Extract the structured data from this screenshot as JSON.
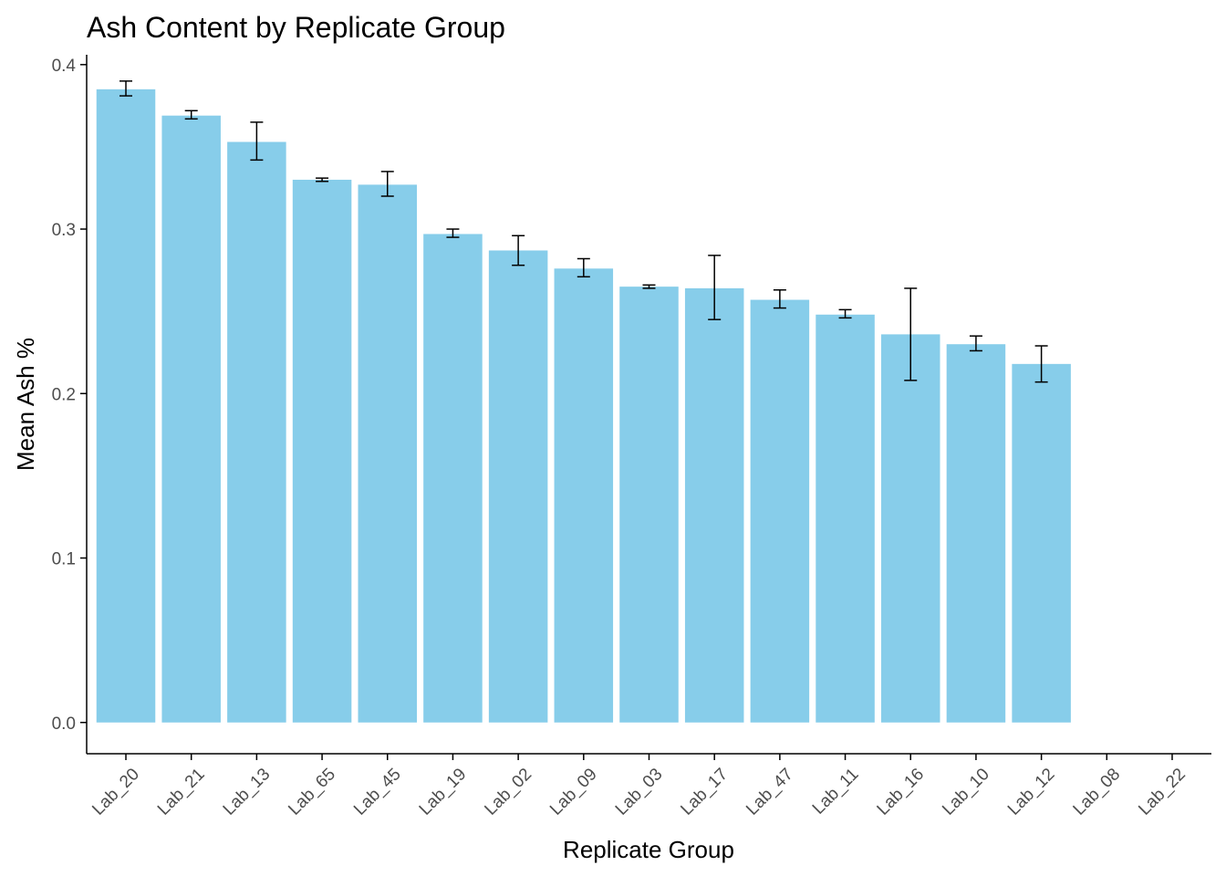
{
  "chart_data": {
    "type": "bar",
    "title": "Ash Content by Replicate Group",
    "xlabel": "Replicate Group",
    "ylabel": "Mean Ash %",
    "categories": [
      "Lab_20",
      "Lab_21",
      "Lab_13",
      "Lab_65",
      "Lab_45",
      "Lab_19",
      "Lab_02",
      "Lab_09",
      "Lab_03",
      "Lab_17",
      "Lab_47",
      "Lab_11",
      "Lab_16",
      "Lab_10",
      "Lab_12",
      "Lab_08",
      "Lab_22"
    ],
    "values": [
      0.385,
      0.369,
      0.353,
      0.33,
      0.327,
      0.297,
      0.287,
      0.276,
      0.265,
      0.264,
      0.257,
      0.248,
      0.236,
      0.23,
      0.218,
      null,
      null
    ],
    "error_low": [
      0.381,
      0.367,
      0.342,
      0.329,
      0.32,
      0.295,
      0.278,
      0.271,
      0.264,
      0.245,
      0.252,
      0.246,
      0.208,
      0.226,
      0.207,
      null,
      null
    ],
    "error_high": [
      0.39,
      0.372,
      0.365,
      0.331,
      0.335,
      0.3,
      0.296,
      0.282,
      0.266,
      0.284,
      0.263,
      0.251,
      0.264,
      0.235,
      0.229,
      null,
      null
    ],
    "ylim": [
      -0.019,
      0.406
    ],
    "yticks": [
      0.0,
      0.1,
      0.2,
      0.3,
      0.4
    ],
    "ytick_labels": [
      "0.0",
      "0.1",
      "0.2",
      "0.3",
      "0.4"
    ],
    "grid": false,
    "legend": "none",
    "colors": {
      "bar": "#87CDEA",
      "error_bar": "#000000",
      "axis": "#000000",
      "tick_label": "#4d4d4d"
    }
  }
}
